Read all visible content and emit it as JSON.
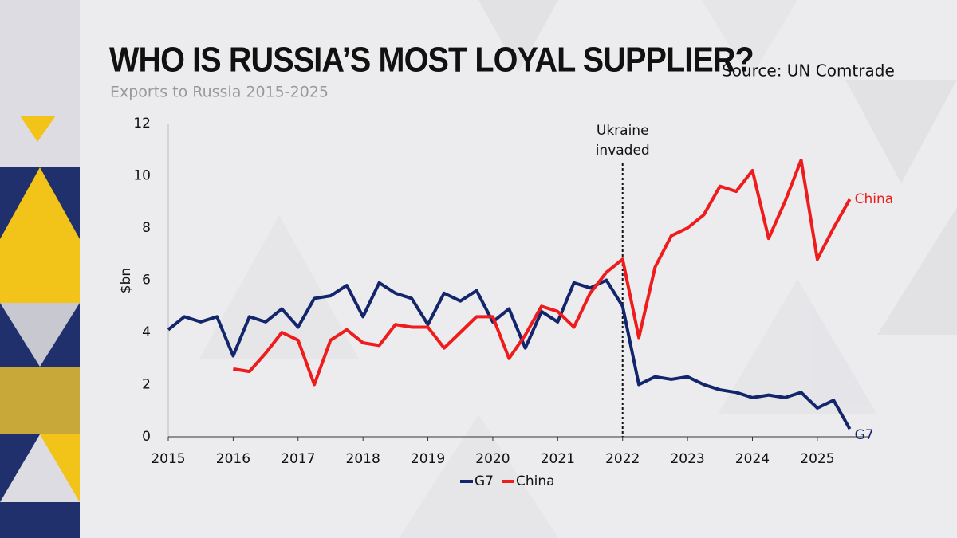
{
  "chart_data": {
    "type": "line",
    "title": "WHO IS RUSSIA’S MOST LOYAL SUPPLIER?",
    "subtitle": "Exports to Russia 2015-2025",
    "source": "Source: UN Comtrade",
    "y_label": "$bn",
    "annotation": {
      "lines": [
        "Ukraine",
        "invaded"
      ],
      "x": 2022
    },
    "x": [
      2015,
      2015.25,
      2015.5,
      2015.75,
      2016,
      2016.25,
      2016.5,
      2016.75,
      2017,
      2017.25,
      2017.5,
      2017.75,
      2018,
      2018.25,
      2018.5,
      2018.75,
      2019,
      2019.25,
      2019.5,
      2019.75,
      2020,
      2020.25,
      2020.5,
      2020.75,
      2021,
      2021.25,
      2021.5,
      2021.75,
      2022,
      2022.25,
      2022.5,
      2022.75,
      2023,
      2023.25,
      2023.5,
      2023.75,
      2024,
      2024.25,
      2024.5,
      2024.75,
      2025,
      2025.25,
      2025.5
    ],
    "series": [
      {
        "name": "G7",
        "color": "#13256b",
        "values": [
          4.1,
          4.6,
          4.4,
          4.6,
          3.1,
          4.6,
          4.4,
          4.9,
          4.2,
          5.3,
          5.4,
          5.8,
          4.6,
          5.9,
          5.5,
          5.3,
          4.3,
          5.5,
          5.2,
          5.6,
          4.4,
          4.9,
          3.4,
          4.8,
          4.4,
          5.9,
          5.7,
          6.0,
          5.0,
          2.0,
          2.3,
          2.2,
          2.3,
          2.0,
          1.8,
          1.7,
          1.5,
          1.6,
          1.5,
          1.7,
          1.1,
          1.4,
          0.3
        ]
      },
      {
        "name": "China",
        "color": "#ee1c1c",
        "values": [
          null,
          null,
          null,
          null,
          2.6,
          2.5,
          3.2,
          4.0,
          3.7,
          2.0,
          3.7,
          4.1,
          3.6,
          3.5,
          4.3,
          4.2,
          4.2,
          3.4,
          4.0,
          4.6,
          4.6,
          3.0,
          3.9,
          5.0,
          4.8,
          4.2,
          5.5,
          6.3,
          6.8,
          3.8,
          6.5,
          7.7,
          8.0,
          8.5,
          9.6,
          9.4,
          10.2,
          7.6,
          9.0,
          10.6,
          6.8,
          8.0,
          9.1
        ]
      }
    ],
    "xlim": [
      2015,
      2025.8
    ],
    "xticks": [
      2015,
      2016,
      2017,
      2018,
      2019,
      2020,
      2021,
      2022,
      2023,
      2024,
      2025
    ],
    "ylim": [
      0,
      12
    ],
    "yticks": [
      0,
      2,
      4,
      6,
      8,
      10,
      12
    ],
    "grid": false,
    "legend": "bottom"
  }
}
